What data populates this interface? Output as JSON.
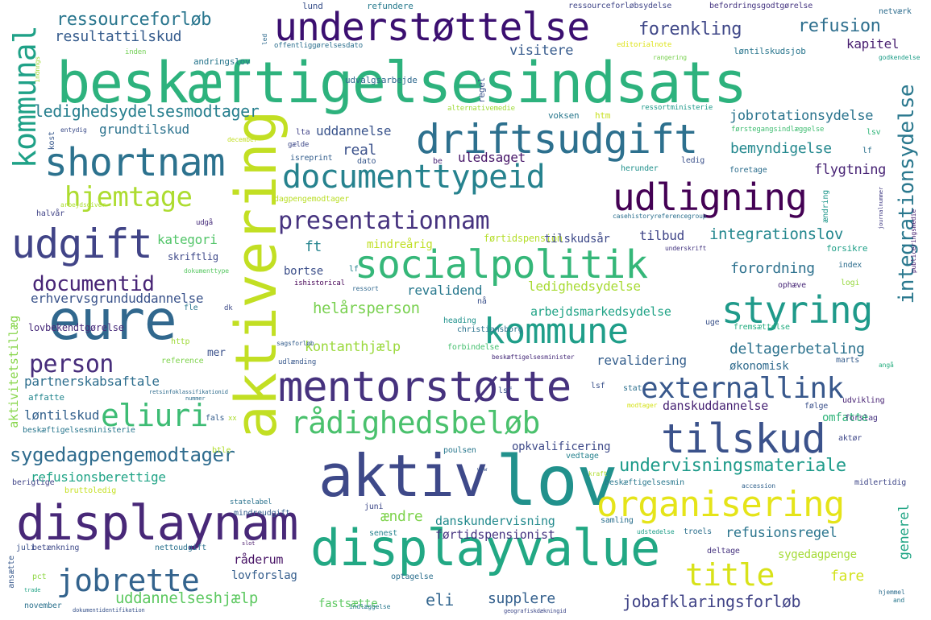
{
  "cloud": {
    "words": [
      {
        "t": "beskæftigelsesindsats",
        "c": "#2db27d"
      },
      {
        "t": "aktivering",
        "c": "#c2df23"
      },
      {
        "t": "understøttelse",
        "c": "#3b0f70"
      },
      {
        "t": "driftsudgift",
        "c": "#2d708e"
      },
      {
        "t": "udligning",
        "c": "#440154"
      },
      {
        "t": "socialpolitik",
        "c": "#35b779"
      },
      {
        "t": "mentorstøtte",
        "c": "#46327e"
      },
      {
        "t": "displaynam",
        "c": "#482878"
      },
      {
        "t": "displayvalue",
        "c": "#22a884"
      },
      {
        "t": "aktiv",
        "c": "#3e4989"
      },
      {
        "t": "lov",
        "c": "#21918c"
      },
      {
        "t": "eure",
        "c": "#31688e"
      },
      {
        "t": "kommune",
        "c": "#1f9e89"
      },
      {
        "t": "shortnam",
        "c": "#2c728e"
      },
      {
        "t": "documenttypeid",
        "c": "#26828e"
      },
      {
        "t": "styring",
        "c": "#1f9a8a"
      },
      {
        "t": "udgift",
        "c": "#414487"
      },
      {
        "t": "organisering",
        "c": "#e5e419"
      },
      {
        "t": "tilskud",
        "c": "#3b528b"
      },
      {
        "t": "rådighedsbeløb",
        "c": "#4ac16d"
      },
      {
        "t": "externallink",
        "c": "#38588c"
      },
      {
        "t": "jobrette",
        "c": "#33638d"
      },
      {
        "t": "title",
        "c": "#d8e219"
      },
      {
        "t": "hjemtage",
        "c": "#addc30"
      },
      {
        "t": "presentationnam",
        "c": "#46337f"
      },
      {
        "t": "eliuri",
        "c": "#3dbc74"
      },
      {
        "t": "kommunal",
        "c": "#1fa187"
      },
      {
        "t": "integrationsydelse",
        "c": "#2a788e"
      },
      {
        "t": "documentid",
        "c": "#482576"
      },
      {
        "t": "person",
        "c": "#472d7b"
      },
      {
        "t": "sygedagpengemodtager",
        "c": "#2f6c8e"
      },
      {
        "t": "undervisningsmateriale",
        "c": "#1e9b8a"
      },
      {
        "t": "ressourceforløb",
        "c": "#2a768e"
      },
      {
        "t": "forenkling",
        "c": "#3f4788"
      },
      {
        "t": "refusion",
        "c": "#2e6f8e"
      },
      {
        "t": "resultattilskud",
        "c": "#365c8d"
      },
      {
        "t": "visitere",
        "c": "#375b8d"
      },
      {
        "t": "kapitel",
        "c": "#481f70"
      },
      {
        "t": "ledighedsydelsesmodtager",
        "c": "#277f8e"
      },
      {
        "t": "jobrotationsydelse",
        "c": "#2b748e"
      },
      {
        "t": "grundtilskud",
        "c": "#2c738e"
      },
      {
        "t": "uddannelse",
        "c": "#3a548c"
      },
      {
        "t": "real",
        "c": "#3b518b"
      },
      {
        "t": "uledsaget",
        "c": "#481769"
      },
      {
        "t": "bemyndigelse",
        "c": "#23888e"
      },
      {
        "t": "flygtning",
        "c": "#482475"
      },
      {
        "t": "kategori",
        "c": "#52c569"
      },
      {
        "t": "mindreårig",
        "c": "#c0df25"
      },
      {
        "t": "førtidspension",
        "c": "#b5de2b"
      },
      {
        "t": "tilskudsår",
        "c": "#3e4a89"
      },
      {
        "t": "tilbud",
        "c": "#404588"
      },
      {
        "t": "integrationslov",
        "c": "#24878e"
      },
      {
        "t": "ft",
        "c": "#25848e"
      },
      {
        "t": "forordning",
        "c": "#2d718e"
      },
      {
        "t": "bortse",
        "c": "#3c4f8a"
      },
      {
        "t": "revalidend",
        "c": "#29798e"
      },
      {
        "t": "ledighedsydelse",
        "c": "#a8db34"
      },
      {
        "t": "erhvervsgrunduddannelse",
        "c": "#3a538b"
      },
      {
        "t": "helårsperson",
        "c": "#7ad151"
      },
      {
        "t": "arbejdsmarkedsydelse",
        "c": "#20a386"
      },
      {
        "t": "kontanthjælp",
        "c": "#9bd93c"
      },
      {
        "t": "deltagerbetaling",
        "c": "#2c728e"
      },
      {
        "t": "revalidering",
        "c": "#355f8d"
      },
      {
        "t": "økonomisk",
        "c": "#2f6b8e"
      },
      {
        "t": "partnerskabsaftale",
        "c": "#2e6e8e"
      },
      {
        "t": "løntilskud",
        "c": "#34618d"
      },
      {
        "t": "danskuddannelse",
        "c": "#482475"
      },
      {
        "t": "omfatte",
        "c": "#31b57b"
      },
      {
        "t": "refusionsberettige",
        "c": "#20a486"
      },
      {
        "t": "opkvalificering",
        "c": "#3e4a89"
      },
      {
        "t": "ændre",
        "c": "#7fd34e"
      },
      {
        "t": "danskundervisning",
        "c": "#238a8d"
      },
      {
        "t": "refusionsregel",
        "c": "#2b758e"
      },
      {
        "t": "generel",
        "c": "#21a585"
      },
      {
        "t": "førtidspensionist",
        "c": "#463480"
      },
      {
        "t": "sygedagpenge",
        "c": "#a5db36"
      },
      {
        "t": "fare",
        "c": "#d2e21b"
      },
      {
        "t": "råderum",
        "c": "#471365"
      },
      {
        "t": "lovforslag",
        "c": "#355e8d"
      },
      {
        "t": "uddannelseshjælp",
        "c": "#5ec962"
      },
      {
        "t": "eli",
        "c": "#32658e"
      },
      {
        "t": "supplere",
        "c": "#34608d"
      },
      {
        "t": "fastsætte",
        "c": "#5ec962"
      },
      {
        "t": "jobafklaringsforløb",
        "c": "#414487"
      },
      {
        "t": "aktivitetstillæg",
        "c": "#86d549"
      },
      {
        "t": "lovbekendtgørelse",
        "c": "#472a7a"
      },
      {
        "t": "skriftlig",
        "c": "#3e4989"
      },
      {
        "t": "mer",
        "c": "#3b518b"
      },
      {
        "t": "affatte",
        "c": "#24868e"
      },
      {
        "t": "beskæftigelsesministerie",
        "c": "#2a778e"
      },
      {
        "t": "lund",
        "c": "#3b528b"
      },
      {
        "t": "refundere",
        "c": "#297b8e"
      },
      {
        "t": "ressourceforløbsydelse",
        "c": "#404688"
      },
      {
        "t": "befordringsgodtgørelse",
        "c": "#453581"
      },
      {
        "t": "netværk",
        "c": "#2e6d8e"
      },
      {
        "t": "andringslov",
        "c": "#2a778e"
      },
      {
        "t": "udvalgsarbejde",
        "c": "#306a8e"
      },
      {
        "t": "løntilskudsjob",
        "c": "#2a768e"
      },
      {
        "t": "inden",
        "c": "#73d056"
      },
      {
        "t": "editorialnote",
        "c": "#dde318"
      },
      {
        "t": "rangering",
        "c": "#7ad151"
      },
      {
        "t": "godkendelse",
        "c": "#1f9e89"
      },
      {
        "t": "offentliggørelsesdato",
        "c": "#2d708e"
      },
      {
        "t": "regel",
        "c": "#3a538b"
      },
      {
        "t": "alternativemedie",
        "c": "#a0da39"
      },
      {
        "t": "voksen",
        "c": "#2a788e"
      },
      {
        "t": "htm",
        "c": "#c8e020"
      },
      {
        "t": "ressortministerie",
        "c": "#1f998a"
      },
      {
        "t": "kost",
        "c": "#38598c"
      },
      {
        "t": "entydig",
        "c": "#3d4e8a"
      },
      {
        "t": "lta",
        "c": "#404387"
      },
      {
        "t": "førstegangsindlæggelse",
        "c": "#40bd72"
      },
      {
        "t": "december",
        "c": "#c2df23"
      },
      {
        "t": "gælde",
        "c": "#3e4989"
      },
      {
        "t": "be",
        "c": "#482475"
      },
      {
        "t": "dato",
        "c": "#38588c"
      },
      {
        "t": "isreprint",
        "c": "#345f8d"
      },
      {
        "t": "herunder",
        "c": "#21918c"
      },
      {
        "t": "ledig",
        "c": "#3b518b"
      },
      {
        "t": "foretage",
        "c": "#2e6f8e"
      },
      {
        "t": "dagpengemodtager",
        "c": "#bade28"
      },
      {
        "t": "arbejdsgiver",
        "c": "#ade030"
      },
      {
        "t": "halvår",
        "c": "#414487"
      },
      {
        "t": "udgå",
        "c": "#472d7b"
      },
      {
        "t": "casehistoryreferencegroup",
        "c": "#2d708e"
      },
      {
        "t": "ændring",
        "c": "#1f978b"
      },
      {
        "t": "journalnummer",
        "c": "#433e85"
      },
      {
        "t": "publiceringsmedie",
        "c": "#482071"
      },
      {
        "t": "underskrift",
        "c": "#453781"
      },
      {
        "t": "forsikre",
        "c": "#1fa088"
      },
      {
        "t": "index",
        "c": "#2e6e8e"
      },
      {
        "t": "logi",
        "c": "#97d83f"
      },
      {
        "t": "ophæve",
        "c": "#482878"
      },
      {
        "t": "dokumenttype",
        "c": "#5ac864"
      },
      {
        "t": "ishistorical",
        "c": "#440154"
      },
      {
        "t": "ressort",
        "c": "#31688e"
      },
      {
        "t": "christiansborg",
        "c": "#2c738e"
      },
      {
        "t": "heading",
        "c": "#20928c"
      },
      {
        "t": "sagsforløb",
        "c": "#355e8d"
      },
      {
        "t": "fremsættelse",
        "c": "#26ad81"
      },
      {
        "t": "uge",
        "c": "#3b528b"
      },
      {
        "t": "fle",
        "c": "#2a778e"
      },
      {
        "t": "dk",
        "c": "#3e4a89"
      },
      {
        "t": "http",
        "c": "#9fda3a"
      },
      {
        "t": "reference",
        "c": "#7fd34e"
      },
      {
        "t": "udlænding",
        "c": "#38588c"
      },
      {
        "t": "forbindelse",
        "c": "#46c06f"
      },
      {
        "t": "beskæftigelsesminister",
        "c": "#472c7a"
      },
      {
        "t": "marts",
        "c": "#365d8d"
      },
      {
        "t": "angå",
        "c": "#28ae80"
      },
      {
        "t": "retsinfoklassifikationid",
        "c": "#2f6c8e"
      },
      {
        "t": "nummer",
        "c": "#2e6e8e"
      },
      {
        "t": "lsf",
        "c": "#3b528b"
      },
      {
        "t": "stat",
        "c": "#2d708e"
      },
      {
        "t": "modtager",
        "c": "#d5e21a"
      },
      {
        "t": "udvikling",
        "c": "#482374"
      },
      {
        "t": "følge",
        "c": "#3b518b"
      },
      {
        "t": "forslag",
        "c": "#46337f"
      },
      {
        "t": "aktør",
        "c": "#3f4889"
      },
      {
        "t": "fals",
        "c": "#355e8d"
      },
      {
        "t": "xx",
        "c": "#addc30"
      },
      {
        "t": "btle",
        "c": "#b2dd2d"
      },
      {
        "t": "poulsen",
        "c": "#2a788e"
      },
      {
        "t": "vedtage",
        "c": "#26828e"
      },
      {
        "t": "www",
        "c": "#3a538b"
      },
      {
        "t": "kraft",
        "c": "#b0dd2f"
      },
      {
        "t": "beskæftigelsesmin",
        "c": "#2a788e"
      },
      {
        "t": "accession",
        "c": "#33638d"
      },
      {
        "t": "midlertidig",
        "c": "#3f4788"
      },
      {
        "t": "berigtige",
        "c": "#404588"
      },
      {
        "t": "bruttoledig",
        "c": "#c5e021"
      },
      {
        "t": "statelabel",
        "c": "#2c738e"
      },
      {
        "t": "mindreudgift",
        "c": "#355e8d"
      },
      {
        "t": "juni",
        "c": "#3e4989"
      },
      {
        "t": "senest",
        "c": "#26828e"
      },
      {
        "t": "samling",
        "c": "#2d708e"
      },
      {
        "t": "udstedelse",
        "c": "#1f9e89"
      },
      {
        "t": "troels",
        "c": "#2d708e"
      },
      {
        "t": "juli",
        "c": "#3b528b"
      },
      {
        "t": "betænkning",
        "c": "#3e4a89"
      },
      {
        "t": "nettoudgift",
        "c": "#2c728e"
      },
      {
        "t": "slot",
        "c": "#48186a"
      },
      {
        "t": "deltage",
        "c": "#46337f"
      },
      {
        "t": "pct",
        "c": "#8fd744"
      },
      {
        "t": "trade",
        "c": "#20a386"
      },
      {
        "t": "optagelse",
        "c": "#2d708e"
      },
      {
        "t": "ansætte",
        "c": "#38598c"
      },
      {
        "t": "november",
        "c": "#2c728e"
      },
      {
        "t": "dokumentidentifikation",
        "c": "#3a548c"
      },
      {
        "t": "indlæggelse",
        "c": "#29798e"
      },
      {
        "t": "geografiskdækningid",
        "c": "#3e4989"
      },
      {
        "t": "hjemmel",
        "c": "#2e6d8e"
      },
      {
        "t": "and",
        "c": "#2a788e"
      },
      {
        "t": "lsv",
        "c": "#32b67a"
      },
      {
        "t": "lf",
        "c": "#2c728e"
      },
      {
        "t": "lsf",
        "c": "#3b528b"
      },
      {
        "t": "lf",
        "c": "#26828e"
      },
      {
        "t": "led",
        "c": "#2f6b8e"
      },
      {
        "t": "indnngs",
        "c": "#a0da39"
      },
      {
        "t": "nå",
        "c": "#3b518b"
      }
    ]
  }
}
